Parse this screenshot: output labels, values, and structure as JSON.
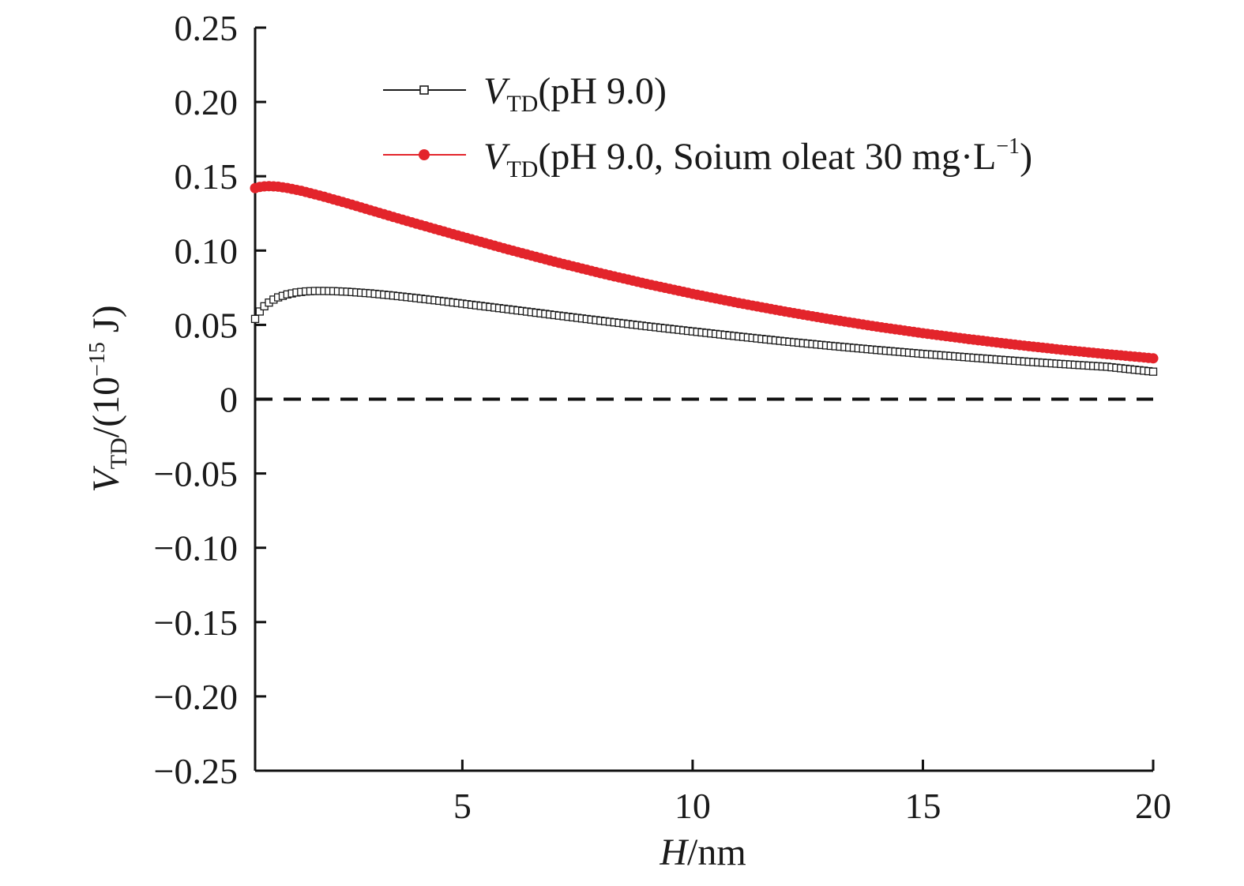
{
  "chart_data": {
    "type": "scatter",
    "title": "",
    "x_axis": {
      "label_var": "H",
      "label_unit": "/nm",
      "range": [
        0.5,
        20
      ],
      "ticks": [
        5,
        10,
        15,
        20
      ],
      "tick_labels": [
        "5",
        "10",
        "15",
        "20"
      ]
    },
    "y_axis": {
      "label_var": "V",
      "label_sub": "TD",
      "label_rest": "/(10",
      "label_sup": "−15",
      "label_end": " J)",
      "range": [
        -0.25,
        0.25
      ],
      "ticks": [
        -0.25,
        -0.2,
        -0.15,
        -0.1,
        -0.05,
        0,
        0.05,
        0.1,
        0.15,
        0.2,
        0.25
      ],
      "tick_labels": [
        "−0.25",
        "−0.20",
        "−0.15",
        "−0.10",
        "−0.05",
        "0",
        "0.05",
        "0.10",
        "0.15",
        "0.20",
        "0.25"
      ]
    },
    "reference_line": {
      "y": 0,
      "style": "dashed",
      "color": "#111111"
    },
    "legend_position": "top-right",
    "series": [
      {
        "legend_var": "V",
        "legend_sub": "TD",
        "legend_rest": "(pH 9.0)",
        "legend_sup": "",
        "legend_end": "",
        "marker": "open-square",
        "color": "#1a1a1a",
        "x": [
          0.5,
          0.6,
          0.7,
          0.8,
          0.9,
          1.0,
          1.2,
          1.4,
          1.6,
          1.8,
          2.0,
          2.2,
          2.5,
          3.0,
          3.5,
          4.0,
          4.5,
          5.0,
          6.0,
          7.0,
          8.0,
          9.0,
          10.0,
          11.0,
          12.0,
          13.0,
          14.0,
          15.0,
          16.0,
          17.0,
          18.0,
          19.0,
          20.0
        ],
        "y": [
          0.054,
          0.059,
          0.0625,
          0.065,
          0.067,
          0.0685,
          0.0705,
          0.0718,
          0.0725,
          0.0728,
          0.0728,
          0.0727,
          0.0723,
          0.0712,
          0.0697,
          0.068,
          0.0662,
          0.0643,
          0.0605,
          0.0566,
          0.0528,
          0.0491,
          0.0456,
          0.0422,
          0.0389,
          0.0359,
          0.0331,
          0.0305,
          0.0281,
          0.0258,
          0.0237,
          0.0218,
          0.0185
        ]
      },
      {
        "legend_var": "V",
        "legend_sub": "TD",
        "legend_rest": "(pH 9.0, Soium oleat 30 mg·L",
        "legend_sup": "−1",
        "legend_end": ")",
        "marker": "filled-circle",
        "color": "#e3242b",
        "x": [
          0.5,
          0.6,
          0.7,
          0.8,
          0.9,
          1.0,
          1.2,
          1.5,
          2.0,
          2.5,
          3.0,
          3.5,
          4.0,
          4.5,
          5.0,
          6.0,
          7.0,
          8.0,
          9.0,
          10.0,
          11.0,
          12.0,
          13.0,
          14.0,
          15.0,
          16.0,
          17.0,
          18.0,
          19.0,
          20.0
        ],
        "y": [
          0.142,
          0.1428,
          0.1432,
          0.1433,
          0.1432,
          0.143,
          0.1421,
          0.1402,
          0.1362,
          0.1318,
          0.1272,
          0.1226,
          0.1181,
          0.1137,
          0.1093,
          0.1007,
          0.0925,
          0.0848,
          0.0776,
          0.0709,
          0.0647,
          0.059,
          0.0537,
          0.0488,
          0.0444,
          0.0404,
          0.0367,
          0.0333,
          0.0303,
          0.0275
        ]
      }
    ]
  }
}
